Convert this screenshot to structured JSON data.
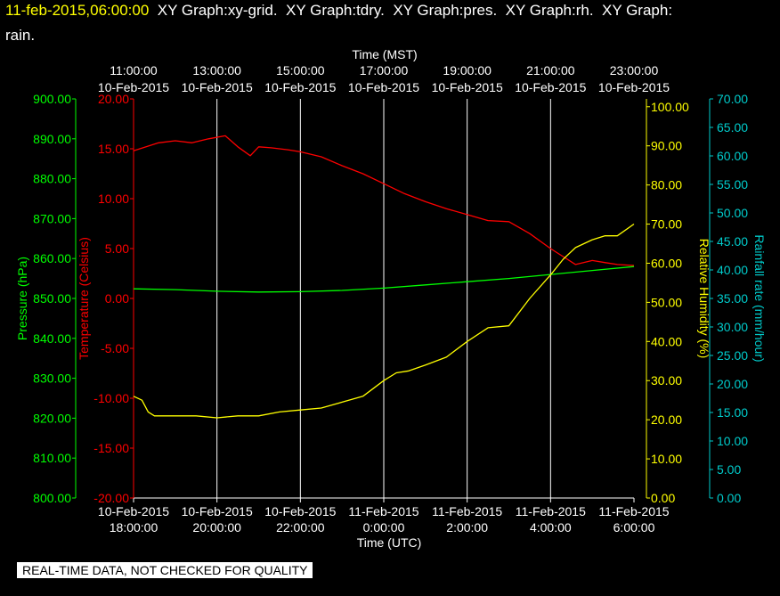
{
  "title": {
    "timestamp": "11-feb-2015,06:00:00",
    "line1_rest": "  XY Graph:xy-grid.  XY Graph:tdry.  XY Graph:pres.  XY Graph:rh.  XY Graph:",
    "line2": "rain."
  },
  "disclaimer": "REAL-TIME DATA, NOT CHECKED FOR QUALITY",
  "colors": {
    "temperature": "#ff0000",
    "pressure": "#00ff00",
    "humidity": "#ffff00",
    "rainfall": "#00cccc",
    "grid": "#ffffff",
    "background": "#000000"
  },
  "chart_data": {
    "type": "line",
    "grid": true,
    "top_axis": {
      "label": "Time (MST)",
      "ticks": [
        {
          "time": "11:00:00",
          "date": "10-Feb-2015"
        },
        {
          "time": "13:00:00",
          "date": "10-Feb-2015"
        },
        {
          "time": "15:00:00",
          "date": "10-Feb-2015"
        },
        {
          "time": "17:00:00",
          "date": "10-Feb-2015"
        },
        {
          "time": "19:00:00",
          "date": "10-Feb-2015"
        },
        {
          "time": "21:00:00",
          "date": "10-Feb-2015"
        },
        {
          "time": "23:00:00",
          "date": "10-Feb-2015"
        }
      ]
    },
    "bottom_axis": {
      "label": "Time (UTC)",
      "xlim": [
        "2015-02-10 18:00",
        "2015-02-11 06:00"
      ],
      "ticks": [
        {
          "date": "10-Feb-2015",
          "time": "18:00:00"
        },
        {
          "date": "10-Feb-2015",
          "time": "20:00:00"
        },
        {
          "date": "10-Feb-2015",
          "time": "22:00:00"
        },
        {
          "date": "11-Feb-2015",
          "time": "0:00:00"
        },
        {
          "date": "11-Feb-2015",
          "time": "2:00:00"
        },
        {
          "date": "11-Feb-2015",
          "time": "4:00:00"
        },
        {
          "date": "11-Feb-2015",
          "time": "6:00:00"
        }
      ]
    },
    "axes": {
      "pressure": {
        "label": "Pressure (hPa)",
        "ylim": [
          800,
          900
        ],
        "ticks": [
          "800.00",
          "810.00",
          "820.00",
          "830.00",
          "840.00",
          "850.00",
          "860.00",
          "870.00",
          "880.00",
          "890.00",
          "900.00"
        ]
      },
      "temperature": {
        "label": "Temperature (Celsius)",
        "ylim": [
          -20,
          20
        ],
        "ticks": [
          "-20.00",
          "-15.00",
          "-10.00",
          "-5.00",
          "0.00",
          "5.00",
          "10.00",
          "15.00",
          "20.00"
        ]
      },
      "humidity": {
        "label": "Relative Humidity (%)",
        "ylim": [
          0,
          102
        ],
        "ticks": [
          "0.00",
          "10.00",
          "20.00",
          "30.00",
          "40.00",
          "50.00",
          "60.00",
          "70.00",
          "80.00",
          "90.00",
          "100.00"
        ]
      },
      "rainfall": {
        "label": "Rainfall rate (mm/hour)",
        "ylim": [
          0,
          70
        ],
        "ticks": [
          "0.00",
          "5.00",
          "10.00",
          "15.00",
          "20.00",
          "25.00",
          "30.00",
          "35.00",
          "40.00",
          "45.00",
          "50.00",
          "55.00",
          "60.00",
          "65.00",
          "70.00"
        ]
      }
    },
    "series": [
      {
        "name": "Temperature",
        "axis": "temperature",
        "x_hours_utc_from_18": [
          0,
          0.3,
          0.6,
          1,
          1.4,
          1.8,
          2.2,
          2.5,
          2.8,
          3.0,
          3.3,
          3.7,
          4.0,
          4.5,
          5.0,
          5.5,
          6.0,
          6.5,
          7.0,
          7.5,
          8.0,
          8.5,
          9.0,
          9.5,
          10.0,
          10.3,
          10.6,
          11.0,
          11.3,
          11.6,
          12.0
        ],
        "values": [
          14.8,
          15.2,
          15.6,
          15.8,
          15.6,
          16.0,
          16.3,
          15.2,
          14.3,
          15.2,
          15.1,
          14.9,
          14.7,
          14.2,
          13.3,
          12.5,
          11.5,
          10.5,
          9.7,
          9.0,
          8.4,
          7.8,
          7.7,
          6.5,
          5.0,
          4.2,
          3.4,
          3.8,
          3.6,
          3.4,
          3.3
        ]
      },
      {
        "name": "Pressure",
        "axis": "pressure",
        "x_hours_utc_from_18": [
          0,
          1,
          2,
          3,
          4,
          5,
          6,
          7,
          8,
          9,
          10,
          11,
          12
        ],
        "values": [
          852.4,
          852.2,
          851.8,
          851.6,
          851.7,
          852.0,
          852.6,
          853.4,
          854.2,
          855.0,
          856.0,
          857.0,
          858.0
        ]
      },
      {
        "name": "Relative Humidity",
        "axis": "humidity",
        "x_hours_utc_from_18": [
          0,
          0.2,
          0.35,
          0.5,
          1,
          1.5,
          2,
          2.5,
          3,
          3.5,
          4,
          4.5,
          5,
          5.5,
          6,
          6.3,
          6.6,
          7,
          7.5,
          8,
          8.5,
          9,
          9.5,
          10,
          10.3,
          10.6,
          11,
          11.3,
          11.6,
          12
        ],
        "values": [
          26,
          25,
          22,
          21,
          21,
          21,
          20.5,
          21,
          21,
          22,
          22.5,
          23,
          24.5,
          26,
          30,
          32,
          32.5,
          34,
          36,
          40,
          43.5,
          44,
          51,
          57,
          61,
          64,
          66,
          67,
          67,
          70
        ]
      },
      {
        "name": "Rainfall rate",
        "axis": "rainfall",
        "x_hours_utc_from_18": [],
        "values": []
      }
    ]
  }
}
